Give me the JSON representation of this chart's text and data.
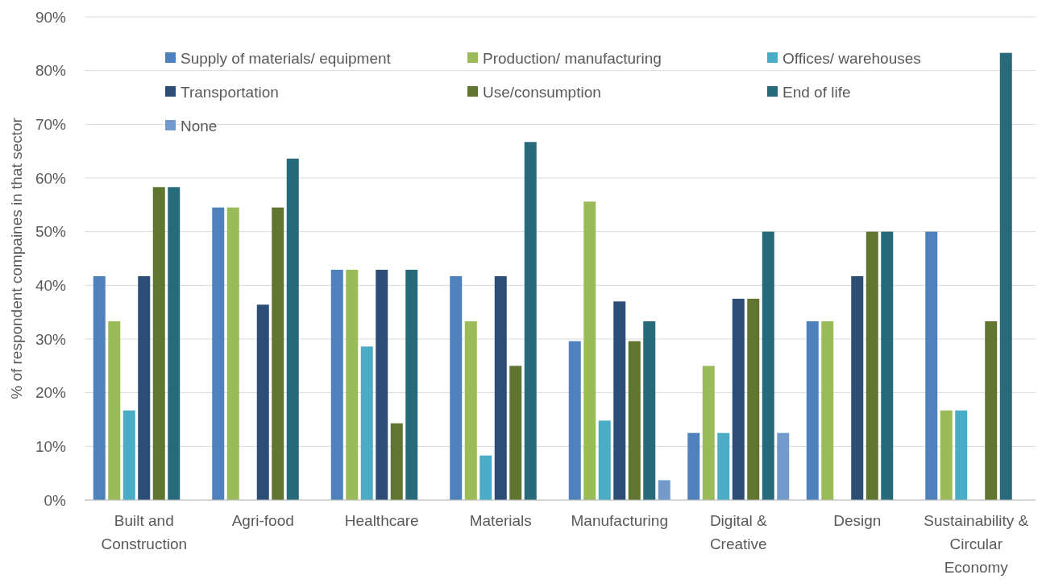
{
  "chart_data": {
    "type": "bar",
    "ylabel": "% of respondent compaines in that sector",
    "categories": [
      "Built and Construction",
      "Agri-food",
      "Healthcare",
      "Materials",
      "Manufacturing",
      "Digital & Creative",
      "Design",
      "Sustainability & Circular Economy"
    ],
    "series": [
      {
        "name": "Supply of materials/ equipment",
        "color": "#4f81bd",
        "values": [
          41.7,
          54.5,
          42.9,
          41.7,
          29.6,
          12.5,
          33.3,
          50
        ]
      },
      {
        "name": "Production/ manufacturing",
        "color": "#9bbb59",
        "values": [
          33.3,
          54.5,
          42.9,
          33.3,
          55.6,
          25,
          33.3,
          16.7
        ]
      },
      {
        "name": "Offices/ warehouses",
        "color": "#4bacc6",
        "values": [
          16.7,
          0,
          28.6,
          8.3,
          14.8,
          12.5,
          0,
          16.7
        ]
      },
      {
        "name": "Transportation",
        "color": "#2c4d75",
        "values": [
          41.7,
          36.4,
          42.9,
          41.7,
          37,
          37.5,
          41.7,
          0
        ]
      },
      {
        "name": "Use/consumption",
        "color": "#5f7530",
        "values": [
          58.3,
          54.5,
          14.3,
          25,
          29.6,
          37.5,
          50,
          33.3
        ]
      },
      {
        "name": "End of life",
        "color": "#276a7c",
        "values": [
          58.3,
          63.6,
          42.9,
          66.7,
          33.3,
          50,
          50,
          83.3
        ]
      },
      {
        "name": "None",
        "color": "#729aca",
        "values": [
          0,
          0,
          0,
          0,
          3.7,
          12.5,
          0,
          0
        ]
      }
    ],
    "ylim": [
      0,
      90
    ],
    "yticks": [
      {
        "value": 0,
        "label": "0%"
      },
      {
        "value": 10,
        "label": "10%"
      },
      {
        "value": 20,
        "label": "20%"
      },
      {
        "value": 30,
        "label": "30%"
      },
      {
        "value": 40,
        "label": "40%"
      },
      {
        "value": 50,
        "label": "50%"
      },
      {
        "value": 60,
        "label": "60%"
      },
      {
        "value": 70,
        "label": "70%"
      },
      {
        "value": 80,
        "label": "80%"
      },
      {
        "value": 90,
        "label": "90%"
      }
    ],
    "grid": "y",
    "legend": "top"
  }
}
